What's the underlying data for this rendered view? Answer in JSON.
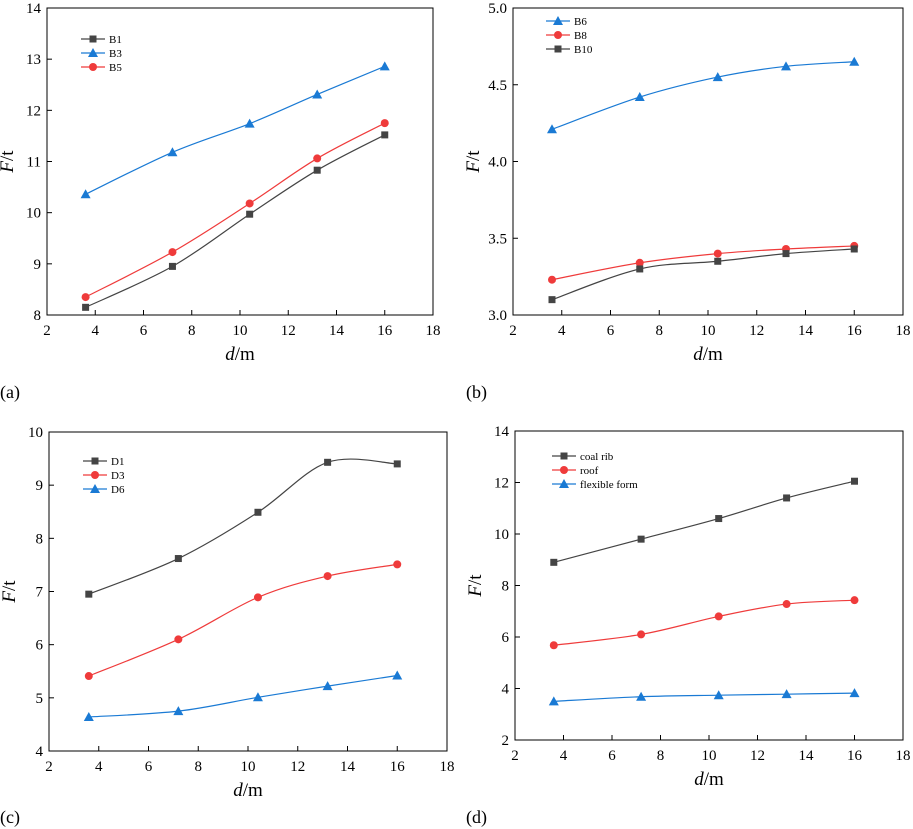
{
  "chart_data": [
    {
      "type": "line",
      "panel_label": "(a)",
      "xlabel_italic": "d",
      "xlabel_unit": "/m",
      "ylabel_italic": "F",
      "ylabel_unit": "/t",
      "xlim": [
        2,
        18
      ],
      "ylim": [
        8,
        14
      ],
      "xticks": [
        2,
        4,
        6,
        8,
        10,
        12,
        14,
        16,
        18
      ],
      "yticks": [
        8,
        9,
        10,
        11,
        12,
        13,
        14
      ],
      "legend_position": "top-left",
      "x": [
        3.6,
        7.2,
        10.4,
        13.2,
        16
      ],
      "series": [
        {
          "name": "B1",
          "marker": "square",
          "color": "#444444",
          "values": [
            8.15,
            8.95,
            9.97,
            10.83,
            11.52
          ]
        },
        {
          "name": "B3",
          "marker": "triangle",
          "color": "#1a7ad4",
          "values": [
            10.36,
            11.18,
            11.74,
            12.31,
            12.86
          ]
        },
        {
          "name": "B5",
          "marker": "circle",
          "color": "#ef3b3b",
          "values": [
            8.35,
            9.23,
            10.18,
            11.06,
            11.75
          ]
        }
      ]
    },
    {
      "type": "line",
      "panel_label": "(b)",
      "xlabel_italic": "d",
      "xlabel_unit": "/m",
      "ylabel_italic": "F",
      "ylabel_unit": "/t",
      "xlim": [
        2,
        18
      ],
      "ylim": [
        3.0,
        5.0
      ],
      "xticks": [
        2,
        4,
        6,
        8,
        10,
        12,
        14,
        16,
        18
      ],
      "yticks": [
        "3.0",
        "3.5",
        "4.0",
        "4.5",
        "5.0"
      ],
      "legend_position": "top-left",
      "x": [
        3.6,
        7.2,
        10.4,
        13.2,
        16
      ],
      "series": [
        {
          "name": "B6",
          "marker": "triangle",
          "color": "#1a7ad4",
          "values": [
            4.21,
            4.42,
            4.55,
            4.62,
            4.65
          ]
        },
        {
          "name": "B8",
          "marker": "circle",
          "color": "#ef3b3b",
          "values": [
            3.23,
            3.34,
            3.4,
            3.43,
            3.45
          ]
        },
        {
          "name": "B10",
          "marker": "square",
          "color": "#444444",
          "values": [
            3.1,
            3.3,
            3.35,
            3.4,
            3.43
          ]
        }
      ]
    },
    {
      "type": "line",
      "panel_label": "(c)",
      "xlabel_italic": "d",
      "xlabel_unit": "/m",
      "ylabel_italic": "F",
      "ylabel_unit": "/t",
      "xlim": [
        2,
        18
      ],
      "ylim": [
        4,
        10
      ],
      "xticks": [
        2,
        4,
        6,
        8,
        10,
        12,
        14,
        16,
        18
      ],
      "yticks": [
        4,
        5,
        6,
        7,
        8,
        9,
        10
      ],
      "legend_position": "top-left",
      "x": [
        3.6,
        7.2,
        10.4,
        13.2,
        16
      ],
      "series": [
        {
          "name": "D1",
          "marker": "square",
          "color": "#444444",
          "values": [
            6.95,
            7.62,
            8.49,
            9.43,
            9.4
          ]
        },
        {
          "name": "D3",
          "marker": "circle",
          "color": "#ef3b3b",
          "values": [
            5.41,
            6.1,
            6.89,
            7.29,
            7.51
          ]
        },
        {
          "name": "D6",
          "marker": "triangle",
          "color": "#1a7ad4",
          "values": [
            4.64,
            4.75,
            5.01,
            5.22,
            5.42
          ]
        }
      ]
    },
    {
      "type": "line",
      "panel_label": "(d)",
      "xlabel_italic": "d",
      "xlabel_unit": "/m",
      "ylabel_italic": "F",
      "ylabel_unit": "/t",
      "xlim": [
        2,
        18
      ],
      "ylim": [
        2,
        14
      ],
      "xticks": [
        2,
        4,
        6,
        8,
        10,
        12,
        14,
        16,
        18
      ],
      "yticks": [
        2,
        4,
        6,
        8,
        10,
        12,
        14
      ],
      "legend_position": "top-left",
      "x": [
        3.6,
        7.2,
        10.4,
        13.2,
        16
      ],
      "series": [
        {
          "name": "coal rib",
          "marker": "square",
          "color": "#444444",
          "values": [
            8.9,
            9.8,
            10.6,
            11.4,
            12.05
          ]
        },
        {
          "name": "roof",
          "marker": "circle",
          "color": "#ef3b3b",
          "values": [
            5.68,
            6.1,
            6.8,
            7.28,
            7.43
          ]
        },
        {
          "name": "flexible form",
          "marker": "triangle",
          "color": "#1a7ad4",
          "values": [
            3.5,
            3.68,
            3.74,
            3.78,
            3.82
          ]
        }
      ]
    }
  ]
}
